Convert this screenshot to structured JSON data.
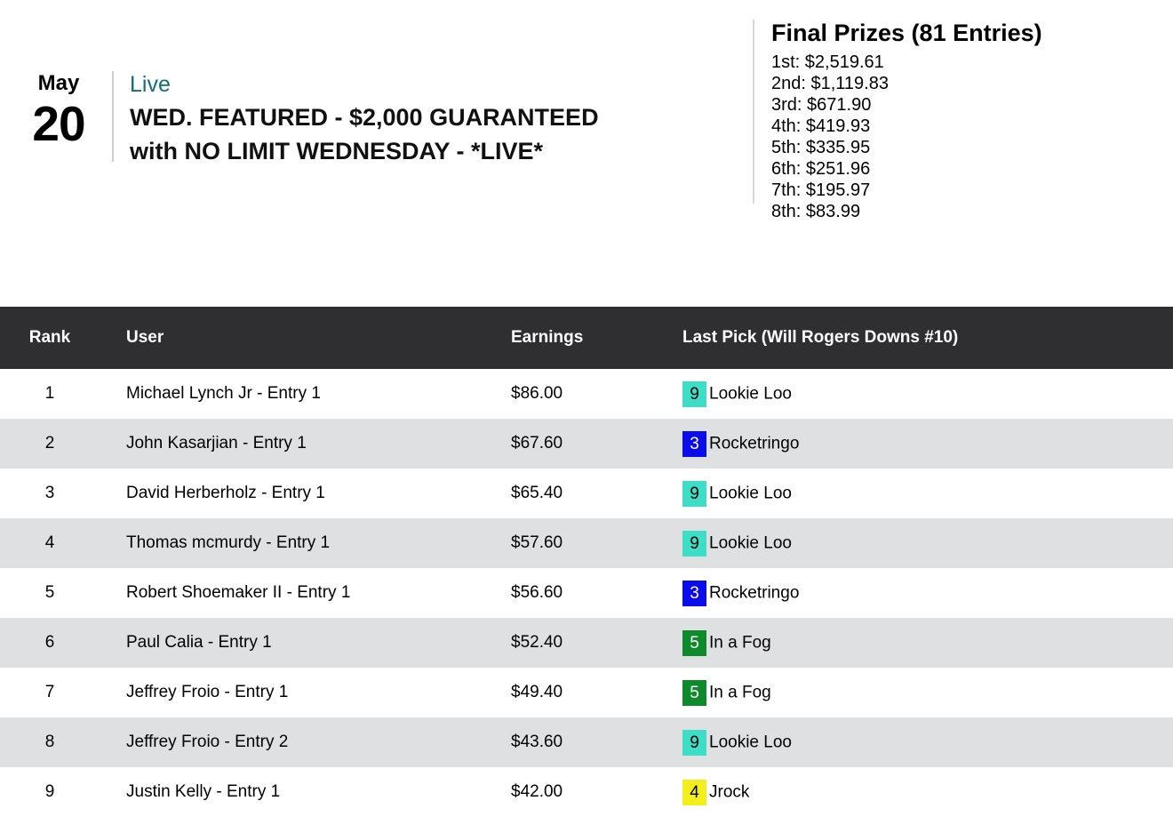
{
  "event": {
    "date_month": "May",
    "date_day": "20",
    "status": "Live",
    "title_line1": "WED. FEATURED - $2,000 GUARANTEED",
    "title_line2": "with NO LIMIT WEDNESDAY - *LIVE*"
  },
  "prizes": {
    "heading": "Final Prizes (81 Entries)",
    "items": [
      "1st: $2,519.61",
      "2nd: $1,119.83",
      "3rd: $671.90",
      "4th: $419.93",
      "5th: $335.95",
      "6th: $251.96",
      "7th: $195.97",
      "8th: $83.99"
    ]
  },
  "colors": {
    "live_text": "#0f6e78",
    "table_header_bg": "#2f2f31",
    "row_alt_bg": "#dfe0e2",
    "badge_turquoise": "#3eddc6",
    "badge_blue": "#0b0cec",
    "badge_green": "#0e8a2d",
    "badge_yellow": "#f2ef1d"
  },
  "table": {
    "headers": {
      "rank": "Rank",
      "user": "User",
      "earnings": "Earnings",
      "last_pick": "Last Pick (Will Rogers Downs #10)"
    },
    "rows": [
      {
        "rank": "1",
        "user": "Michael Lynch Jr - Entry 1",
        "earnings": "$86.00",
        "pick_number": "9",
        "pick_name": "Lookie Loo",
        "pick_bg": "#3eddc6",
        "pick_fg": "#000000"
      },
      {
        "rank": "2",
        "user": "John Kasarjian - Entry 1",
        "earnings": "$67.60",
        "pick_number": "3",
        "pick_name": "Rocketringo",
        "pick_bg": "#0b0cec",
        "pick_fg": "#ffffff"
      },
      {
        "rank": "3",
        "user": "David Herberholz - Entry 1",
        "earnings": "$65.40",
        "pick_number": "9",
        "pick_name": "Lookie Loo",
        "pick_bg": "#3eddc6",
        "pick_fg": "#000000"
      },
      {
        "rank": "4",
        "user": "Thomas mcmurdy - Entry 1",
        "earnings": "$57.60",
        "pick_number": "9",
        "pick_name": "Lookie Loo",
        "pick_bg": "#3eddc6",
        "pick_fg": "#000000"
      },
      {
        "rank": "5",
        "user": "Robert Shoemaker II - Entry 1",
        "earnings": "$56.60",
        "pick_number": "3",
        "pick_name": "Rocketringo",
        "pick_bg": "#0b0cec",
        "pick_fg": "#ffffff"
      },
      {
        "rank": "6",
        "user": "Paul Calia - Entry 1",
        "earnings": "$52.40",
        "pick_number": "5",
        "pick_name": "In a Fog",
        "pick_bg": "#0e8a2d",
        "pick_fg": "#ffffff"
      },
      {
        "rank": "7",
        "user": "Jeffrey Froio - Entry 1",
        "earnings": "$49.40",
        "pick_number": "5",
        "pick_name": "In a Fog",
        "pick_bg": "#0e8a2d",
        "pick_fg": "#ffffff"
      },
      {
        "rank": "8",
        "user": "Jeffrey Froio - Entry 2",
        "earnings": "$43.60",
        "pick_number": "9",
        "pick_name": "Lookie Loo",
        "pick_bg": "#3eddc6",
        "pick_fg": "#000000"
      },
      {
        "rank": "9",
        "user": "Justin Kelly - Entry 1",
        "earnings": "$42.00",
        "pick_number": "4",
        "pick_name": "Jrock",
        "pick_bg": "#f2ef1d",
        "pick_fg": "#000000"
      }
    ]
  }
}
